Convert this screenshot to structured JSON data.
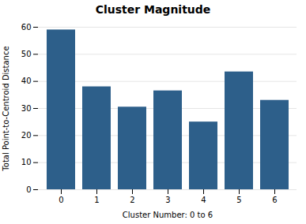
{
  "chart_data": {
    "type": "bar",
    "title": "Cluster Magnitude",
    "xlabel": "Cluster Number: 0 to 6",
    "ylabel": "Total Point-to-Centroid Distance",
    "categories": [
      0,
      1,
      2,
      3,
      4,
      5,
      6
    ],
    "values": [
      59,
      38,
      30.5,
      36.5,
      25,
      43.5,
      33
    ],
    "color": "#2d5f8a",
    "ylim": [
      0,
      60
    ],
    "yticks": [
      0,
      10,
      20,
      30,
      40,
      50,
      60
    ],
    "grid": true
  }
}
